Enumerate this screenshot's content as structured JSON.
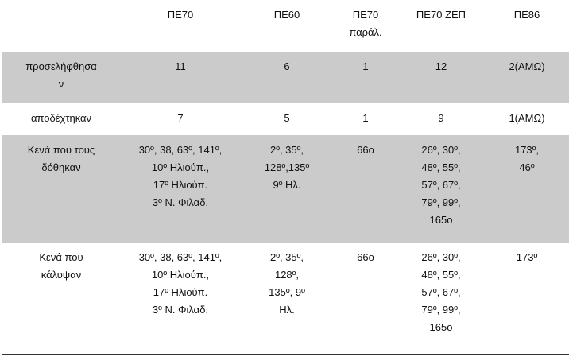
{
  "table": {
    "header": [
      [
        "ΠΕ70"
      ],
      [
        "ΠΕ60"
      ],
      [
        "ΠΕ70",
        "παράλ."
      ],
      [
        "ΠΕ70 ΖΕΠ"
      ],
      [
        "ΠΕ86"
      ]
    ],
    "rows": [
      {
        "label": [
          "προσελήφθησα",
          "ν"
        ],
        "cells": [
          [
            "11"
          ],
          [
            "6"
          ],
          [
            "1"
          ],
          [
            "12"
          ],
          [
            "2(ΑΜΩ)"
          ]
        ]
      },
      {
        "label": [
          "αποδέχτηκαν"
        ],
        "cells": [
          [
            "7"
          ],
          [
            "5"
          ],
          [
            "1"
          ],
          [
            "9"
          ],
          [
            "1(ΑΜΩ)"
          ]
        ]
      },
      {
        "label": [
          "Κενά που τους",
          "δόθηκαν"
        ],
        "cells": [
          [
            "30º, 38, 63º, 141º,",
            "10º Ηλιούπ.,",
            "17º Ηλιούπ.",
            "3º Ν. Φιλαδ."
          ],
          [
            "2º, 35º,",
            "128º,135º",
            "9º Ηλ."
          ],
          [
            "66ο"
          ],
          [
            "26º, 30º,",
            "48º, 55º,",
            "57º, 67º,",
            "79º, 99º,",
            "165ο"
          ],
          [
            "173º,",
            "46º"
          ]
        ]
      },
      {
        "label": [
          "Κενά που",
          "κάλυψαν"
        ],
        "cells": [
          [
            "30º, 38, 63º, 141º,",
            "10º Ηλιούπ.,",
            "17º Ηλιούπ.",
            "3º Ν. Φιλαδ."
          ],
          [
            "2º, 35º,",
            "128º,",
            "135º, 9º",
            "Ηλ."
          ],
          [
            "66ο"
          ],
          [
            "26º, 30º,",
            "48º, 55º,",
            "57º, 67º,",
            "79º, 99º,",
            "165ο"
          ],
          [
            "173º"
          ]
        ]
      }
    ]
  }
}
